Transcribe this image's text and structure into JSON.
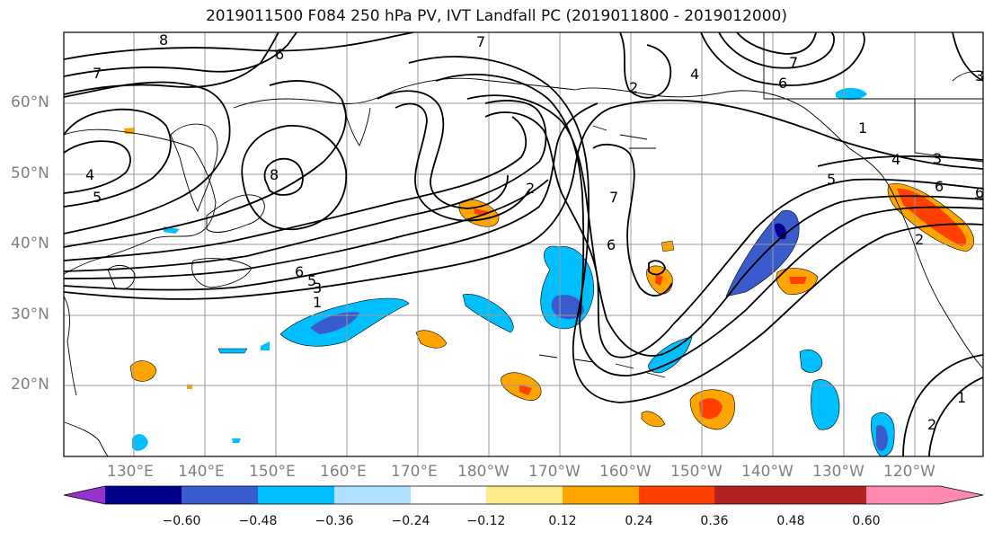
{
  "title": "2019011500 F084 250 hPa PV, IVT Landfall PC (2019011800 - 2019012000)",
  "map": {
    "lat_labels": [
      "60°N",
      "50°N",
      "40°N",
      "30°N",
      "20°N"
    ],
    "lon_labels": [
      "130°E",
      "140°E",
      "150°E",
      "160°E",
      "170°E",
      "180°W",
      "170°W",
      "160°W",
      "150°W",
      "140°W",
      "130°W",
      "120°W"
    ],
    "pv_contour_labels": [
      "8",
      "7",
      "6",
      "7",
      "4",
      "7",
      "6",
      "3",
      "2",
      "1",
      "4",
      "5",
      "8",
      "6",
      "5",
      "3",
      "1",
      "2",
      "7",
      "6",
      "4",
      "3",
      "5",
      "6",
      "2",
      "1",
      "2",
      "6"
    ]
  },
  "colorbar": {
    "ticks": [
      "−0.60",
      "−0.48",
      "−0.36",
      "−0.24",
      "−0.12",
      "0.12",
      "0.24",
      "0.36",
      "0.48",
      "0.60"
    ],
    "colors": [
      "#9932cc",
      "#00008b",
      "#3a5bcc",
      "#00bfff",
      "#b0e0ff",
      "#ffffff",
      "#ffe98a",
      "#ffa500",
      "#ff4000",
      "#b22222",
      "#ff88b0"
    ]
  }
}
